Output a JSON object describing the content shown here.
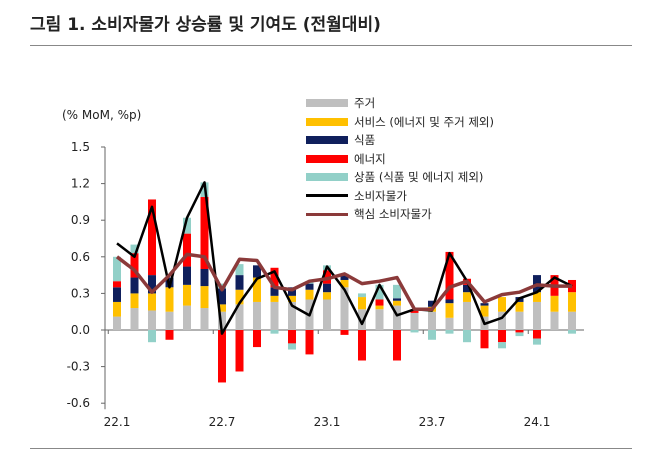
{
  "title": "그림 1. 소비자물가 상승률 및 기여도 (전월대비)",
  "chart_data": {
    "type": "bar",
    "subtype": "stacked bar with lines",
    "title": "그림 1. 소비자물가 상승률 및 기여도 (전월대비)",
    "ylabel": "(% MoM, %p)",
    "ylim": [
      -0.6,
      1.5
    ],
    "yticks": [
      "1.5",
      "1.2",
      "0.9",
      "0.6",
      "0.3",
      "0.0",
      "-0.3",
      "-0.6"
    ],
    "ytick_values": [
      1.5,
      1.2,
      0.9,
      0.6,
      0.3,
      0.0,
      -0.3,
      -0.6
    ],
    "xtick_labels": [
      "22.1",
      "22.7",
      "23.1",
      "23.7",
      "24.1"
    ],
    "xtick_index": [
      0,
      6,
      12,
      18,
      24
    ],
    "categories": [
      "22.1",
      "22.2",
      "22.3",
      "22.4",
      "22.5",
      "22.6",
      "22.7",
      "22.8",
      "22.9",
      "22.10",
      "22.11",
      "22.12",
      "23.1",
      "23.2",
      "23.3",
      "23.4",
      "23.5",
      "23.6",
      "23.7",
      "23.8",
      "23.9",
      "23.10",
      "23.11",
      "23.12",
      "24.1",
      "24.2",
      "24.3"
    ],
    "grid": false,
    "legend_position": "top-right",
    "series": [
      {
        "name": "주거",
        "kind": "bar",
        "color": "#bfbfbf",
        "values": [
          0.11,
          0.18,
          0.16,
          0.15,
          0.2,
          0.18,
          0.15,
          0.21,
          0.23,
          0.23,
          0.23,
          0.25,
          0.25,
          0.35,
          0.17,
          0.17,
          0.2,
          0.14,
          0.15,
          0.1,
          0.23,
          0.11,
          0.15,
          0.15,
          0.23,
          0.15,
          0.15
        ]
      },
      {
        "name": "서비스 (에너지 및 주거 제외)",
        "kind": "bar",
        "color": "#ffc000",
        "values": [
          0.12,
          0.12,
          0.14,
          0.2,
          0.17,
          0.18,
          0.06,
          0.12,
          0.2,
          0.05,
          0.05,
          0.08,
          0.06,
          0.06,
          0.1,
          0.03,
          0.04,
          0.0,
          0.04,
          0.12,
          0.08,
          0.09,
          0.12,
          0.08,
          0.08,
          0.13,
          0.16
        ]
      },
      {
        "name": "식품",
        "kind": "bar",
        "color": "#0f1f5c",
        "values": [
          0.12,
          0.13,
          0.15,
          0.08,
          0.15,
          0.14,
          0.13,
          0.12,
          0.1,
          0.07,
          0.07,
          0.05,
          0.07,
          0.05,
          0.0,
          0.0,
          0.02,
          0.0,
          0.05,
          0.03,
          0.06,
          0.02,
          0.0,
          0.04,
          0.14,
          0.0,
          0.0
        ]
      },
      {
        "name": "에너지",
        "kind": "bar",
        "color": "#ff0000",
        "values": [
          0.05,
          0.2,
          0.62,
          -0.08,
          0.27,
          0.59,
          -0.43,
          -0.34,
          -0.14,
          0.16,
          -0.11,
          -0.2,
          0.11,
          -0.04,
          -0.25,
          0.05,
          -0.25,
          0.03,
          0.0,
          0.39,
          0.05,
          -0.15,
          -0.1,
          -0.02,
          -0.07,
          0.17,
          0.1
        ]
      },
      {
        "name": "상품 (식품 및 에너지 제외)",
        "kind": "bar",
        "color": "#92d0c8",
        "values": [
          0.2,
          0.07,
          -0.1,
          0.0,
          0.13,
          0.12,
          0.04,
          0.09,
          0.0,
          -0.03,
          -0.05,
          0.02,
          0.04,
          0.0,
          0.03,
          0.12,
          0.11,
          -0.02,
          -0.08,
          -0.03,
          -0.1,
          0.0,
          -0.05,
          -0.03,
          -0.05,
          0.0,
          -0.03
        ]
      },
      {
        "name": "소비자물가",
        "kind": "line",
        "color": "#000000",
        "values": [
          0.71,
          0.6,
          1.01,
          0.35,
          0.92,
          1.21,
          -0.03,
          0.22,
          0.42,
          0.48,
          0.2,
          0.12,
          0.52,
          0.33,
          0.05,
          0.37,
          0.12,
          0.17,
          0.16,
          0.63,
          0.4,
          0.05,
          0.1,
          0.26,
          0.31,
          0.43,
          0.36
        ]
      },
      {
        "name": "핵심 소비자물가",
        "kind": "line",
        "color": "#8b3a3a",
        "values": [
          0.6,
          0.49,
          0.31,
          0.45,
          0.62,
          0.6,
          0.33,
          0.58,
          0.57,
          0.35,
          0.33,
          0.4,
          0.42,
          0.46,
          0.38,
          0.4,
          0.43,
          0.17,
          0.17,
          0.35,
          0.4,
          0.23,
          0.29,
          0.31,
          0.37,
          0.36,
          0.36
        ]
      }
    ]
  }
}
